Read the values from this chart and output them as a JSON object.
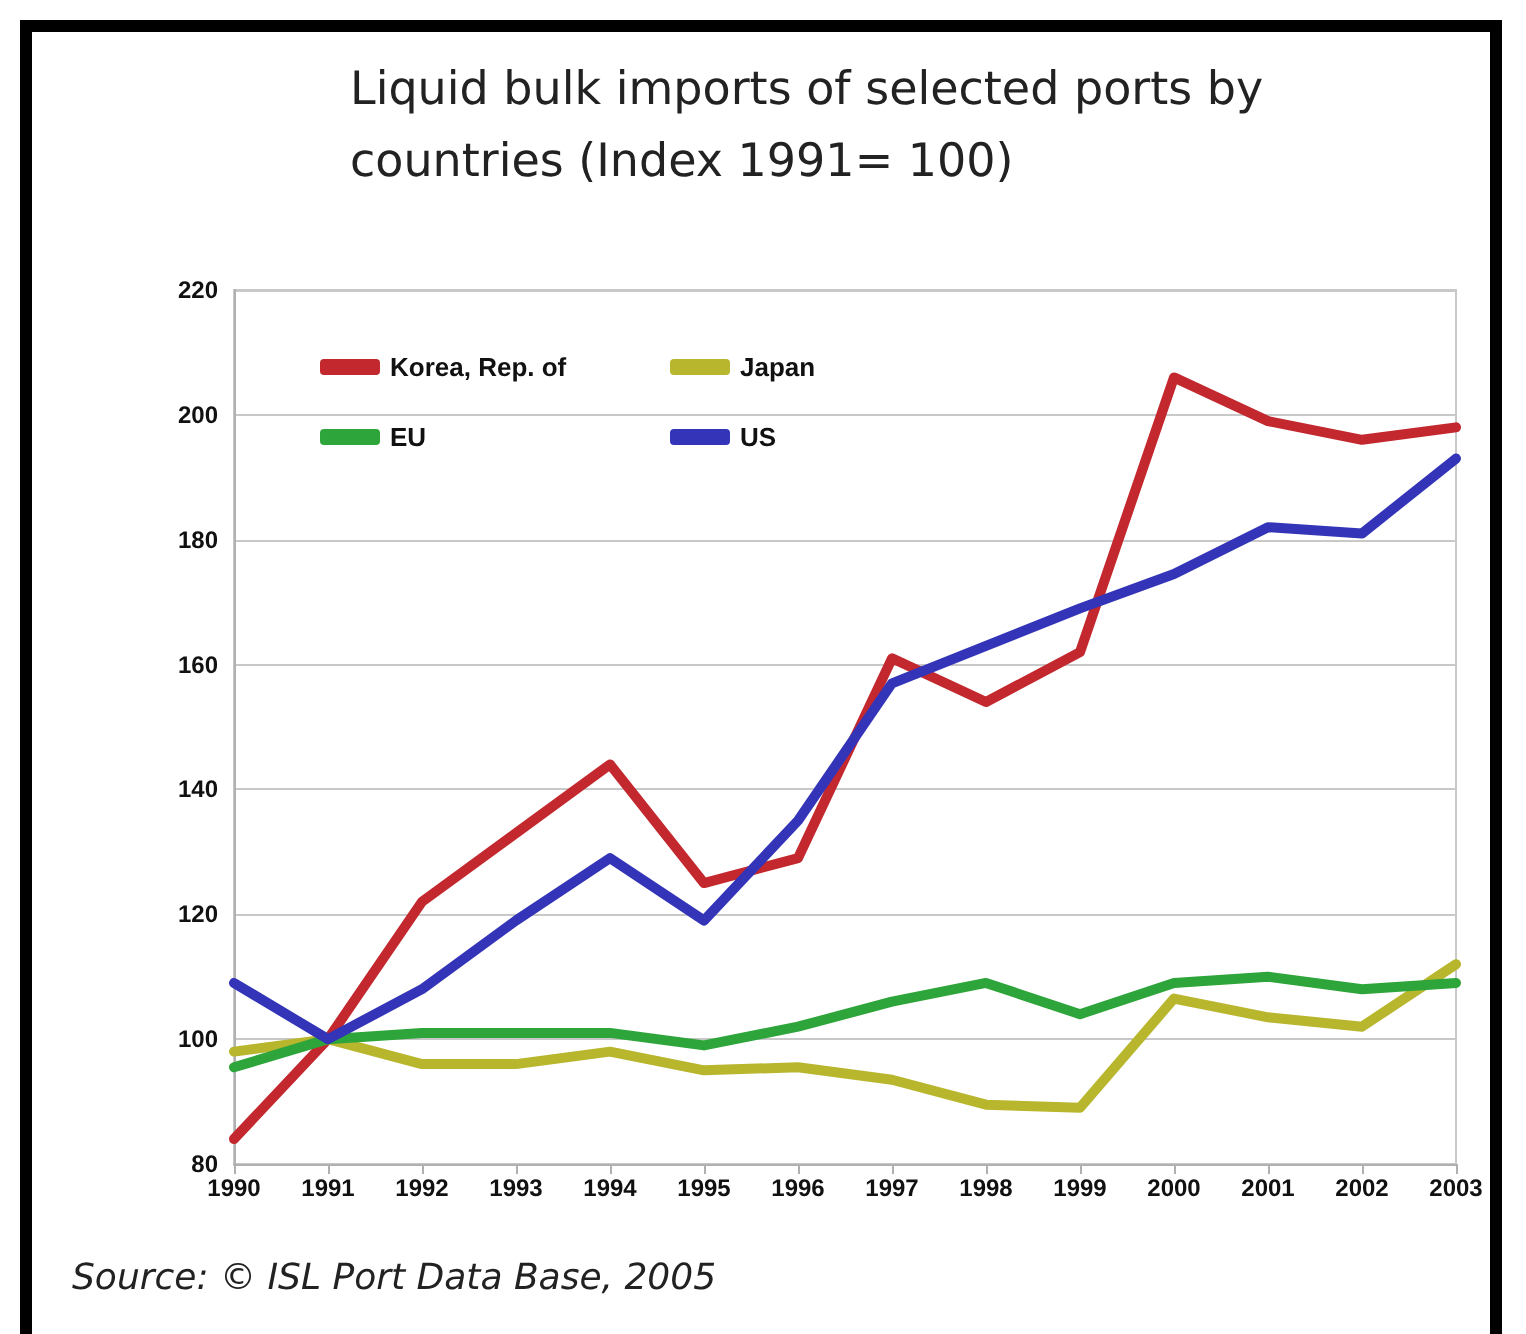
{
  "chart_data": {
    "type": "line",
    "title": "Liquid bulk imports of selected ports by countries (Index 1991= 100)",
    "annotations": [
      "Source: © ISL Port Data Base, 2005"
    ],
    "categories": [
      "1990",
      "1991",
      "1992",
      "1993",
      "1994",
      "1995",
      "1996",
      "1997",
      "1998",
      "1999",
      "2000",
      "2001",
      "2002",
      "2003"
    ],
    "series": [
      {
        "name": "Korea, Rep. of",
        "color": "#c3282e",
        "values": [
          84,
          100,
          122,
          133,
          144,
          125,
          129,
          161,
          154,
          162,
          206,
          199,
          196,
          198
        ]
      },
      {
        "name": "Japan",
        "color": "#b8b62c",
        "values": [
          98,
          100,
          96,
          96,
          98,
          95,
          95.5,
          93.5,
          89.5,
          89,
          106.5,
          103.5,
          102,
          112
        ]
      },
      {
        "name": "EU",
        "color": "#2ea53a",
        "values": [
          95.5,
          100,
          101,
          101,
          101,
          99,
          102,
          106,
          109,
          104,
          109,
          110,
          108,
          109
        ]
      },
      {
        "name": "US",
        "color": "#3434b8",
        "values": [
          109,
          100,
          108,
          119,
          129,
          119,
          135,
          157,
          163,
          169,
          174.5,
          182,
          181,
          193
        ]
      }
    ],
    "ylim": [
      80,
      220
    ],
    "yticks": [
      80,
      100,
      120,
      140,
      160,
      180,
      200,
      220
    ],
    "grid": "y",
    "legend": "top left",
    "marker": "none",
    "line_style": "solid"
  }
}
